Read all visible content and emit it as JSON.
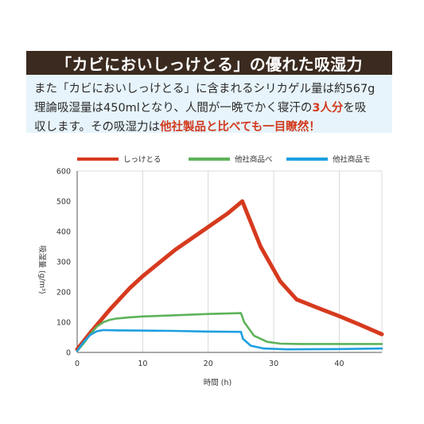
{
  "header": {
    "title": "「カビにおいしっけとる」の優れた吸湿力"
  },
  "description": {
    "line1": "また「カビにおいしっけとる」に含まれるシリカゲル量は約567g",
    "line2_pre": "理論吸湿量は450mlとなり、人間が一晩でかく寝汗の",
    "line2_red": "3人分",
    "line2_post": "を吸",
    "line3_pre": "収します。その吸湿力は",
    "line3_red": "他社製品と比べても一目瞭然！"
  },
  "chart_data": {
    "type": "line",
    "xlabel": "時間 (h)",
    "ylabel": "吸湿量 (g/m³)",
    "xlim": [
      0,
      46.5
    ],
    "ylim": [
      0,
      600
    ],
    "xticks": [
      0,
      10,
      20,
      30,
      40
    ],
    "yticks": [
      0,
      100,
      200,
      300,
      400,
      500,
      600
    ],
    "grid": "vertical",
    "legend_position": "top",
    "series": [
      {
        "name": "しっけとる",
        "color": "#d63a1e",
        "x": [
          0,
          2,
          5,
          8,
          10,
          13,
          15,
          18,
          20,
          23,
          25.2,
          28,
          31,
          33.5,
          37,
          40,
          43,
          46.5
        ],
        "y": [
          10,
          65,
          142,
          212,
          252,
          305,
          340,
          385,
          415,
          460,
          500,
          350,
          235,
          175,
          145,
          120,
          93,
          60
        ]
      },
      {
        "name": "他社商品ベ",
        "color": "#5db35a",
        "x": [
          0,
          1,
          2,
          3,
          4,
          5,
          6,
          8,
          10,
          15,
          20,
          25,
          25.5,
          27,
          29,
          31,
          34,
          40,
          46.5
        ],
        "y": [
          5,
          30,
          60,
          85,
          100,
          108,
          112,
          116,
          119,
          123,
          127,
          130,
          100,
          55,
          35,
          29,
          28,
          28,
          28
        ]
      },
      {
        "name": "他社商品モ",
        "color": "#1e9fe0",
        "x": [
          0,
          1,
          2,
          3,
          4,
          6,
          10,
          15,
          20,
          25,
          25.3,
          26.5,
          28.5,
          32,
          40,
          46.5
        ],
        "y": [
          5,
          35,
          58,
          70,
          74,
          73,
          72,
          71,
          69,
          68,
          45,
          22,
          13,
          10,
          11,
          13
        ]
      }
    ]
  }
}
